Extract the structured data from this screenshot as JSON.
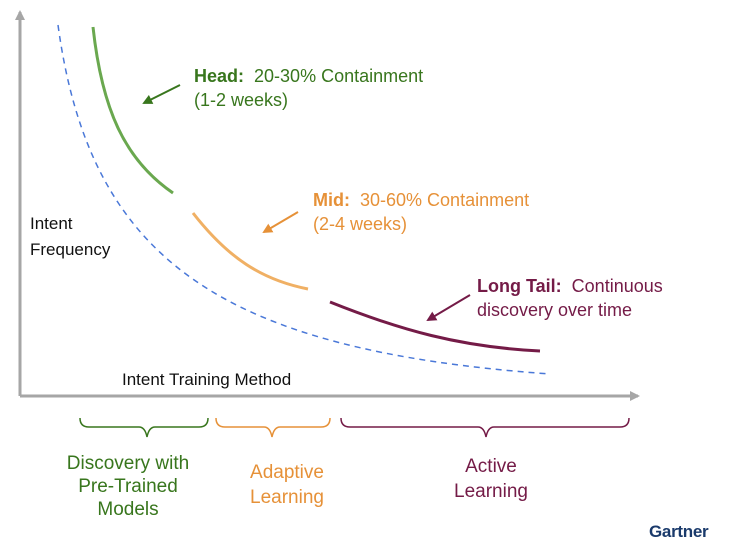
{
  "axes": {
    "y_label_line1": "Intent",
    "y_label_line2": "Frequency",
    "x_label": "Intent Training Method"
  },
  "segments": {
    "head": {
      "title": "Head:",
      "detail": "20-30% Containment",
      "duration": "(1-2 weeks)",
      "color": "#6aa84f"
    },
    "mid": {
      "title": "Mid:",
      "detail": "30-60% Containment",
      "duration": "(2-4 weeks)",
      "color": "#f0b064"
    },
    "tail": {
      "title": "Long Tail:",
      "detail": "Continuous",
      "detail2": "discovery over time",
      "color": "#741b47"
    }
  },
  "phases": {
    "discovery": {
      "line1": "Discovery with",
      "line2": "Pre-Trained",
      "line3": "Models",
      "color": "#38761d"
    },
    "adaptive": {
      "line1": "Adaptive",
      "line2": "Learning",
      "color": "#e69138"
    },
    "active": {
      "line1": "Active",
      "line2": "Learning",
      "color": "#741b47"
    }
  },
  "guide_curve_color": "#4a78d8",
  "axis_color": "#a6a6a6",
  "brand": {
    "logo": "Gartner",
    "color": "#1a3a6b"
  }
}
